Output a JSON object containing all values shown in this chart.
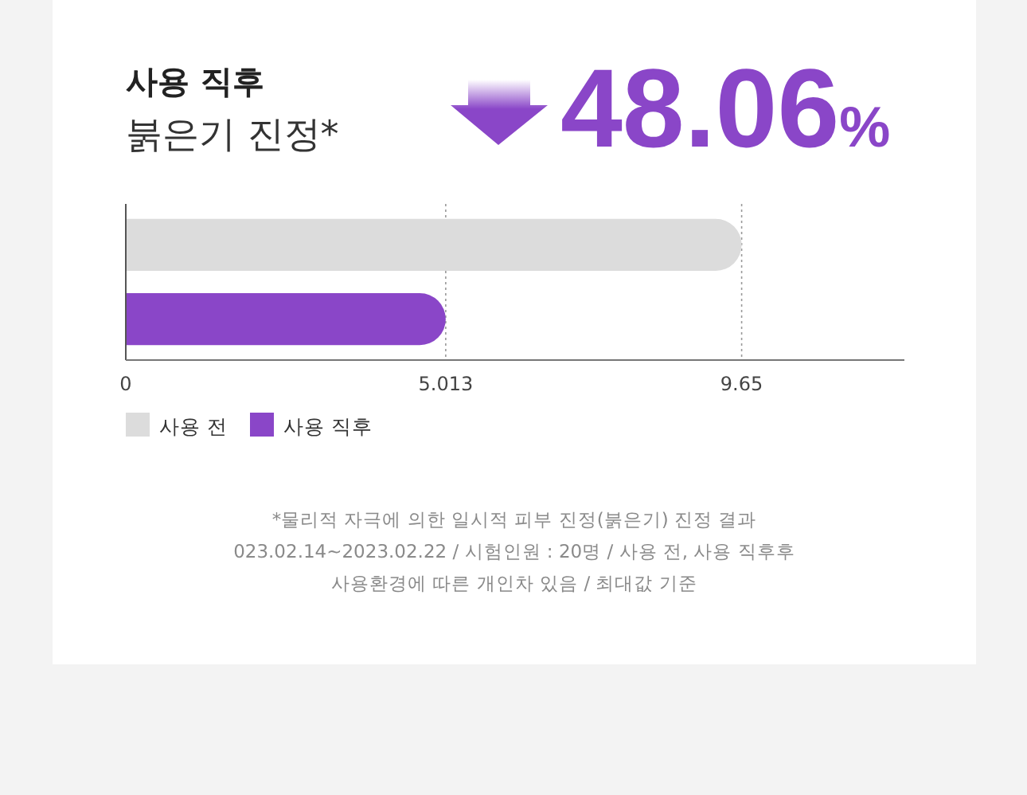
{
  "chart_data": {
    "type": "bar",
    "orientation": "horizontal",
    "title": "사용 직후",
    "subtitle": "붉은기 진정*",
    "annotations": [
      "48.06%",
      "*물리적 자극에 의한 일시적 피부 진정(붉은기) 진정 결과",
      "023.02.14~2023.02.22 / 시험인원 : 20명 / 사용 전, 사용 직후후",
      "사용환경에 따른 개인차 있음 / 최대값 기준"
    ],
    "categories": [
      null,
      null
    ],
    "series": [
      {
        "name": "사용 전",
        "color": "#dcdcdc",
        "values": [
          9.65,
          null
        ]
      },
      {
        "name": "사용 직후",
        "color": "#8a46c8",
        "values": [
          null,
          5.013
        ]
      }
    ],
    "xlim": [
      0,
      12.2
    ],
    "xticks": [
      0,
      5.013,
      9.65
    ],
    "grid": "x",
    "legend": "bottom left"
  }
}
